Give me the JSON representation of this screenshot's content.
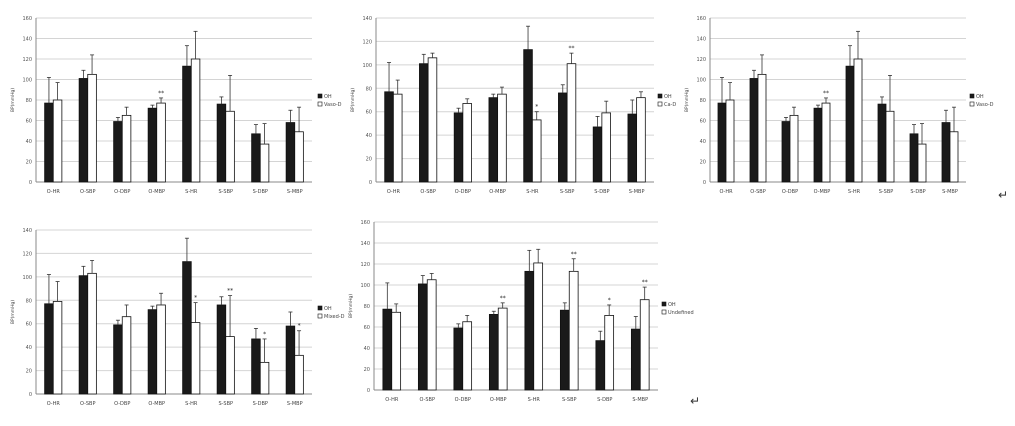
{
  "chart_data": [
    {
      "type": "bar",
      "ylabel": "BP(mmHg)",
      "ylim": [
        0,
        160
      ],
      "yticks": [
        "0",
        "20",
        "40",
        "60",
        "80",
        "100",
        "120",
        "140",
        "160"
      ],
      "categories": [
        "O-HR",
        "O-SBP",
        "O-DBP",
        "O-MBP",
        "S-HR",
        "S-SBP",
        "S-DBP",
        "S-MBP"
      ],
      "grid": true,
      "legend_position": "right",
      "series": [
        {
          "name": "OH",
          "color": "#1a1a1a",
          "values": [
            77,
            101,
            59,
            72,
            113,
            76,
            47,
            58
          ],
          "errors": [
            25,
            8,
            4,
            3,
            20,
            7,
            9,
            12
          ]
        },
        {
          "name": "Vaso-D",
          "color": "#ffffff",
          "values": [
            80,
            105,
            65,
            77,
            120,
            69,
            37,
            49
          ],
          "errors": [
            17,
            19,
            8,
            5,
            27,
            35,
            20,
            24
          ]
        }
      ],
      "annotations": [
        {
          "category": "O-MBP",
          "text": "**"
        }
      ]
    },
    {
      "type": "bar",
      "ylabel": "BP(mmHg)",
      "ylim": [
        0,
        140
      ],
      "yticks": [
        "0",
        "20",
        "40",
        "60",
        "80",
        "100",
        "120",
        "140"
      ],
      "categories": [
        "O-HR",
        "O-SBP",
        "O-DBP",
        "O-MBP",
        "S-HR",
        "S-SBP",
        "S-DBP",
        "S-MBP"
      ],
      "grid": true,
      "legend_position": "right",
      "series": [
        {
          "name": "OH",
          "color": "#1a1a1a",
          "values": [
            77,
            101,
            59,
            72,
            113,
            76,
            47,
            58
          ],
          "errors": [
            25,
            8,
            4,
            3,
            20,
            7,
            9,
            12
          ]
        },
        {
          "name": "Ca-D",
          "color": "#ffffff",
          "values": [
            75,
            106,
            67,
            75,
            53,
            101,
            59,
            72
          ],
          "errors": [
            12,
            4,
            4,
            6,
            7,
            9,
            10,
            5
          ]
        }
      ],
      "annotations": [
        {
          "category": "S-HR",
          "text": "*"
        },
        {
          "category": "S-SBP",
          "text": "**"
        }
      ]
    },
    {
      "type": "bar",
      "ylabel": "BP(mmHg)",
      "ylim": [
        0,
        160
      ],
      "yticks": [
        "0",
        "20",
        "40",
        "60",
        "80",
        "100",
        "120",
        "140",
        "160"
      ],
      "categories": [
        "O-HR",
        "O-SBP",
        "O-DBP",
        "O-MBP",
        "S-HR",
        "S-SBP",
        "S-DBP",
        "S-MBP"
      ],
      "grid": true,
      "legend_position": "right",
      "series": [
        {
          "name": "OH",
          "color": "#1a1a1a",
          "values": [
            77,
            101,
            59,
            72,
            113,
            76,
            47,
            58
          ],
          "errors": [
            25,
            8,
            4,
            3,
            20,
            7,
            9,
            12
          ]
        },
        {
          "name": "Vaso-D",
          "color": "#ffffff",
          "values": [
            80,
            105,
            65,
            77,
            120,
            69,
            37,
            49
          ],
          "errors": [
            17,
            19,
            8,
            5,
            27,
            35,
            20,
            24
          ]
        }
      ],
      "annotations": [
        {
          "category": "O-MBP",
          "text": "**"
        }
      ]
    },
    {
      "type": "bar",
      "ylabel": "BP(mmHg)",
      "ylim": [
        0,
        140
      ],
      "yticks": [
        "0",
        "20",
        "40",
        "60",
        "80",
        "100",
        "120",
        "140"
      ],
      "categories": [
        "O-HR",
        "O-SBP",
        "O-DBP",
        "O-MBP",
        "S-HR",
        "S-SBP",
        "S-DBP",
        "S-MBP"
      ],
      "grid": true,
      "legend_position": "right",
      "series": [
        {
          "name": "OH",
          "color": "#1a1a1a",
          "values": [
            77,
            101,
            59,
            72,
            113,
            76,
            47,
            58
          ],
          "errors": [
            25,
            8,
            4,
            3,
            20,
            7,
            9,
            12
          ]
        },
        {
          "name": "Mixed-D",
          "color": "#ffffff",
          "values": [
            79,
            103,
            66,
            76,
            61,
            49,
            27,
            33
          ],
          "errors": [
            17,
            11,
            10,
            10,
            17,
            35,
            20,
            21
          ]
        }
      ],
      "annotations": [
        {
          "category": "S-HR",
          "text": "*"
        },
        {
          "category": "S-SBP",
          "text": "**"
        },
        {
          "category": "S-DBP",
          "text": "*"
        },
        {
          "category": "S-MBP",
          "text": "*"
        }
      ]
    },
    {
      "type": "bar",
      "ylabel": "BP(mmHg)",
      "ylim": [
        0,
        160
      ],
      "yticks": [
        "0",
        "20",
        "40",
        "60",
        "80",
        "100",
        "120",
        "140",
        "160"
      ],
      "categories": [
        "O-HR",
        "O-SBP",
        "O-DBP",
        "O-MBP",
        "S-HR",
        "S-SBP",
        "S-DBP",
        "S-MBP"
      ],
      "grid": true,
      "legend_position": "right",
      "series": [
        {
          "name": "OH",
          "color": "#1a1a1a",
          "values": [
            77,
            101,
            59,
            72,
            113,
            76,
            47,
            58
          ],
          "errors": [
            25,
            8,
            4,
            3,
            20,
            7,
            9,
            12
          ]
        },
        {
          "name": "Undefined",
          "color": "#ffffff",
          "values": [
            74,
            105,
            65,
            78,
            121,
            113,
            71,
            86
          ],
          "errors": [
            8,
            6,
            6,
            5,
            13,
            12,
            10,
            12
          ]
        }
      ],
      "annotations": [
        {
          "category": "O-MBP",
          "text": "**"
        },
        {
          "category": "S-SBP",
          "text": "**"
        },
        {
          "category": "S-DBP",
          "text": "*"
        },
        {
          "category": "S-MBP",
          "text": "**"
        }
      ]
    }
  ],
  "marks": {
    "arrow_glyph": "↵",
    "cursor_glyph": "↵"
  }
}
